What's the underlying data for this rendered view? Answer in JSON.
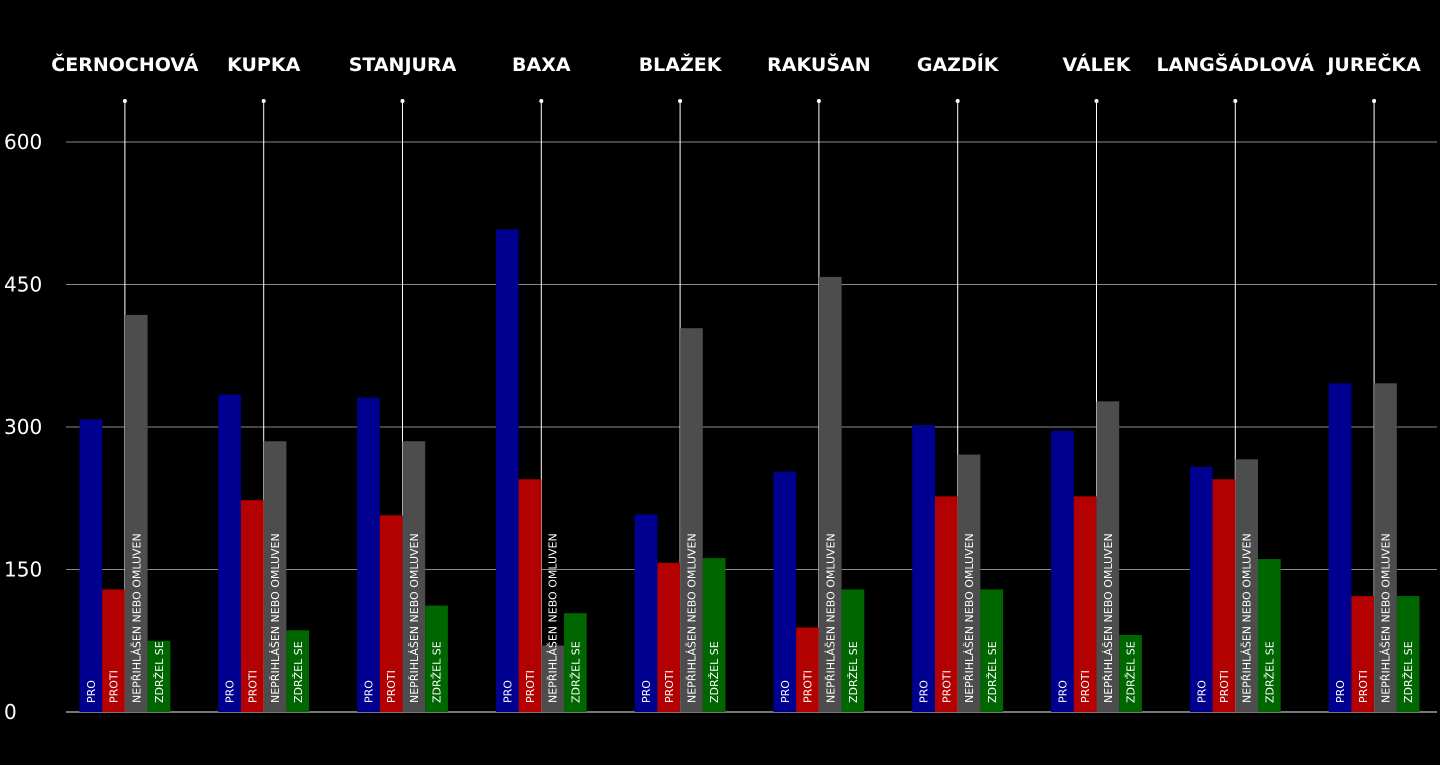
{
  "chart_data": {
    "type": "bar",
    "categories": [
      "ČERNOCHOVÁ",
      "KUPKA",
      "STANJURA",
      "BAXA",
      "BLAŽEK",
      "RAKUŠAN",
      "GAZDÍK",
      "VÁLEK",
      "LANGŠÁDLOVÁ",
      "JUREČKA"
    ],
    "series": [
      {
        "name": "PRO",
        "color": "#000090",
        "values": [
          308,
          334,
          331,
          508,
          208,
          253,
          302,
          296,
          258,
          346
        ]
      },
      {
        "name": "PROTI",
        "color": "#b30000",
        "values": [
          129,
          223,
          207,
          245,
          157,
          89,
          227,
          227,
          245,
          122
        ]
      },
      {
        "name": "NEPŘIHLÁŠEN NEBO OMLUVEN",
        "color": "#4d4d4d",
        "values": [
          418,
          285,
          285,
          70,
          404,
          458,
          271,
          327,
          266,
          346
        ]
      },
      {
        "name": "ZDRŽEL SE",
        "color": "#006600",
        "values": [
          75,
          86,
          112,
          104,
          162,
          129,
          129,
          81,
          161,
          122
        ]
      }
    ],
    "yticks": [
      0,
      150,
      300,
      450,
      600
    ],
    "ylim": [
      0,
      650
    ],
    "grid": true,
    "xlabel": "",
    "ylabel": "",
    "title": ""
  }
}
